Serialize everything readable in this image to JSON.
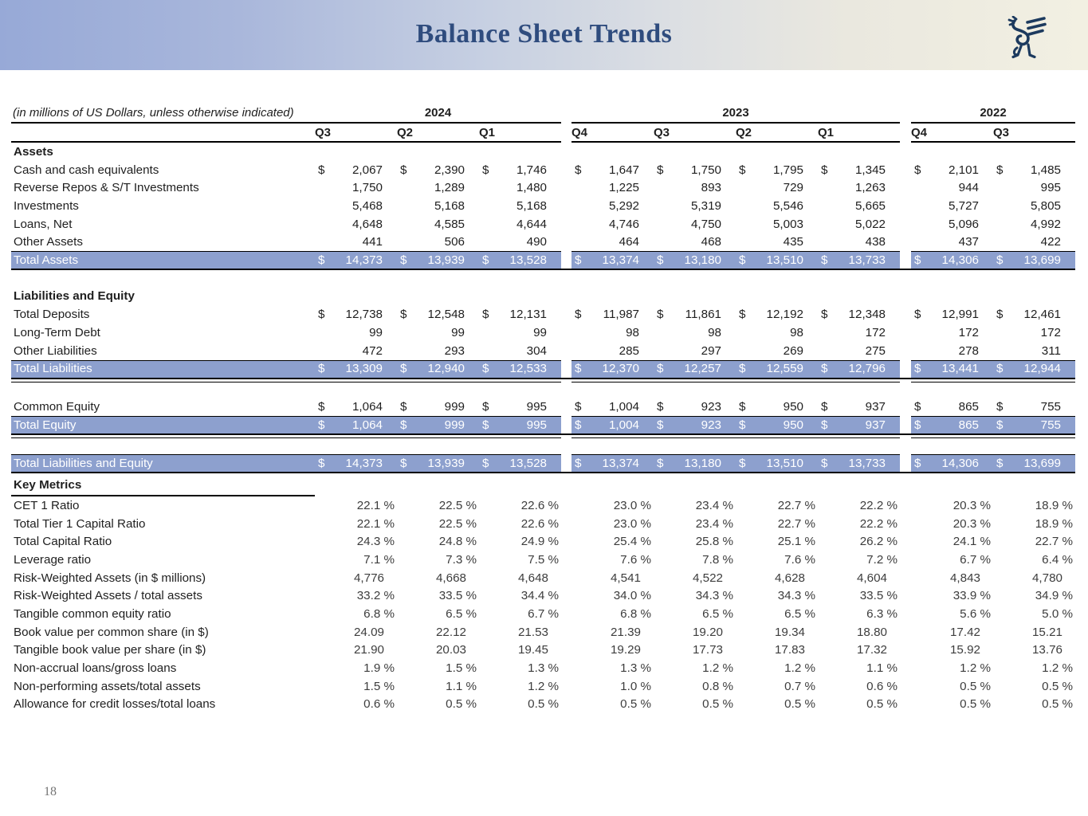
{
  "header": {
    "title": "Balance Sheet Trends",
    "logo_icon": "griffin-logo"
  },
  "footer": {
    "page_number": "18"
  },
  "colors": {
    "highlight_row": "#8da0ce",
    "title_navy": "#2f4c7e",
    "logo_navy": "#1c3a5e",
    "band_left": "#97a9d7",
    "band_right": "#f2f0e2"
  },
  "table": {
    "note": "(in millions of US Dollars, unless otherwise indicated)",
    "year_groups": [
      {
        "label": "2024",
        "quarters": [
          "Q3",
          "Q2",
          "Q1"
        ]
      },
      {
        "label": "2023",
        "quarters": [
          "Q4",
          "Q3",
          "Q2",
          "Q1"
        ]
      },
      {
        "label": "2022",
        "quarters": [
          "Q4",
          "Q3"
        ]
      }
    ],
    "rows": [
      {
        "type": "section",
        "label": "Assets"
      },
      {
        "type": "data",
        "label": "Cash and cash equivalents",
        "dollar": true,
        "values": [
          "2,067",
          "2,390",
          "1,746",
          "1,647",
          "1,750",
          "1,795",
          "1,345",
          "2,101",
          "1,485"
        ]
      },
      {
        "type": "data",
        "label": "Reverse Repos & S/T Investments",
        "values": [
          "1,750",
          "1,289",
          "1,480",
          "1,225",
          "893",
          "729",
          "1,263",
          "944",
          "995"
        ]
      },
      {
        "type": "data",
        "label": "Investments",
        "values": [
          "5,468",
          "5,168",
          "5,168",
          "5,292",
          "5,319",
          "5,546",
          "5,665",
          "5,727",
          "5,805"
        ]
      },
      {
        "type": "data",
        "label": "Loans, Net",
        "values": [
          "4,648",
          "4,585",
          "4,644",
          "4,746",
          "4,750",
          "5,003",
          "5,022",
          "5,096",
          "4,992"
        ]
      },
      {
        "type": "data",
        "label": "Other Assets",
        "values": [
          "441",
          "506",
          "490",
          "464",
          "468",
          "435",
          "438",
          "437",
          "422"
        ]
      },
      {
        "type": "total",
        "label": "Total Assets",
        "dollar": true,
        "underline": "single",
        "values": [
          "14,373",
          "13,939",
          "13,528",
          "13,374",
          "13,180",
          "13,510",
          "13,733",
          "14,306",
          "13,699"
        ]
      },
      {
        "type": "spacer21"
      },
      {
        "type": "section",
        "label": "Liabilities and Equity"
      },
      {
        "type": "data",
        "label": "Total Deposits",
        "dollar": true,
        "values": [
          "12,738",
          "12,548",
          "12,131",
          "11,987",
          "11,861",
          "12,192",
          "12,348",
          "12,991",
          "12,461"
        ]
      },
      {
        "type": "data",
        "label": "Long-Term Debt",
        "values": [
          "99",
          "99",
          "99",
          "98",
          "98",
          "98",
          "172",
          "172",
          "172"
        ]
      },
      {
        "type": "data",
        "label": "Other Liabilities",
        "values": [
          "472",
          "293",
          "304",
          "285",
          "297",
          "269",
          "275",
          "278",
          "311"
        ]
      },
      {
        "type": "total",
        "label": "Total Liabilities",
        "dollar": true,
        "underline": "double",
        "values": [
          "13,309",
          "12,940",
          "12,533",
          "12,370",
          "12,257",
          "12,559",
          "12,796",
          "13,441",
          "12,944"
        ]
      },
      {
        "type": "spacer20"
      },
      {
        "type": "data",
        "label": "Common Equity",
        "dollar": true,
        "values": [
          "1,064",
          "999",
          "995",
          "1,004",
          "923",
          "950",
          "937",
          "865",
          "755"
        ]
      },
      {
        "type": "total",
        "label": "Total Equity",
        "dollar": true,
        "underline": "double",
        "values": [
          "1,064",
          "999",
          "995",
          "1,004",
          "923",
          "950",
          "937",
          "865",
          "755"
        ]
      },
      {
        "type": "spacer20"
      },
      {
        "type": "total",
        "label": "Total Liabilities and Equity",
        "dollar": true,
        "underline": "single",
        "values": [
          "14,373",
          "13,939",
          "13,528",
          "13,374",
          "13,180",
          "13,510",
          "13,733",
          "14,306",
          "13,699"
        ]
      },
      {
        "type": "section_km",
        "label": "Key Metrics"
      },
      {
        "type": "metric",
        "label": "CET 1 Ratio",
        "values": [
          "22.1 %",
          "22.5 %",
          "22.6 %",
          "23.0 %",
          "23.4 %",
          "22.7 %",
          "22.2 %",
          "20.3 %",
          "18.9 %"
        ]
      },
      {
        "type": "metric",
        "label": "Total Tier 1 Capital Ratio",
        "values": [
          "22.1 %",
          "22.5 %",
          "22.6 %",
          "23.0 %",
          "23.4 %",
          "22.7 %",
          "22.2 %",
          "20.3 %",
          "18.9 %"
        ]
      },
      {
        "type": "metric",
        "label": "Total Capital Ratio",
        "values": [
          "24.3 %",
          "24.8 %",
          "24.9 %",
          "25.4 %",
          "25.8 %",
          "25.1 %",
          "26.2 %",
          "24.1 %",
          "22.7 %"
        ]
      },
      {
        "type": "metric",
        "label": "Leverage ratio",
        "values": [
          "7.1 %",
          "7.3 %",
          "7.5 %",
          "7.6 %",
          "7.8 %",
          "7.6 %",
          "7.2 %",
          "6.7 %",
          "6.4 %"
        ]
      },
      {
        "type": "metric",
        "label": "Risk-Weighted Assets (in $ millions)",
        "values": [
          "4,776",
          "4,668",
          "4,648",
          "4,541",
          "4,522",
          "4,628",
          "4,604",
          "4,843",
          "4,780"
        ]
      },
      {
        "type": "metric",
        "label": "Risk-Weighted Assets / total assets",
        "values": [
          "33.2 %",
          "33.5 %",
          "34.4 %",
          "34.0 %",
          "34.3 %",
          "34.3 %",
          "33.5 %",
          "33.9 %",
          "34.9 %"
        ]
      },
      {
        "type": "metric",
        "label": "Tangible common equity ratio",
        "values": [
          "6.8 %",
          "6.5 %",
          "6.7 %",
          "6.8 %",
          "6.5 %",
          "6.5 %",
          "6.3 %",
          "5.6 %",
          "5.0 %"
        ]
      },
      {
        "type": "metric",
        "label": "Book value per common share (in $)",
        "values": [
          "24.09",
          "22.12",
          "21.53",
          "21.39",
          "19.20",
          "19.34",
          "18.80",
          "17.42",
          "15.21"
        ]
      },
      {
        "type": "metric",
        "label": "Tangible book value per share (in $)",
        "values": [
          "21.90",
          "20.03",
          "19.45",
          "19.29",
          "17.73",
          "17.83",
          "17.32",
          "15.92",
          "13.76"
        ]
      },
      {
        "type": "metric",
        "label": "Non-accrual loans/gross loans",
        "values": [
          "1.9 %",
          "1.5 %",
          "1.3 %",
          "1.3 %",
          "1.2 %",
          "1.2 %",
          "1.1 %",
          "1.2 %",
          "1.2 %"
        ]
      },
      {
        "type": "metric",
        "label": "Non-performing assets/total assets",
        "values": [
          "1.5 %",
          "1.1 %",
          "1.2 %",
          "1.0 %",
          "0.8 %",
          "0.7 %",
          "0.6 %",
          "0.5 %",
          "0.5 %"
        ]
      },
      {
        "type": "metric",
        "label": "Allowance for credit losses/total loans",
        "values": [
          "0.6 %",
          "0.5 %",
          "0.5 %",
          "0.5 %",
          "0.5 %",
          "0.5 %",
          "0.5 %",
          "0.5 %",
          "0.5 %"
        ]
      }
    ]
  }
}
